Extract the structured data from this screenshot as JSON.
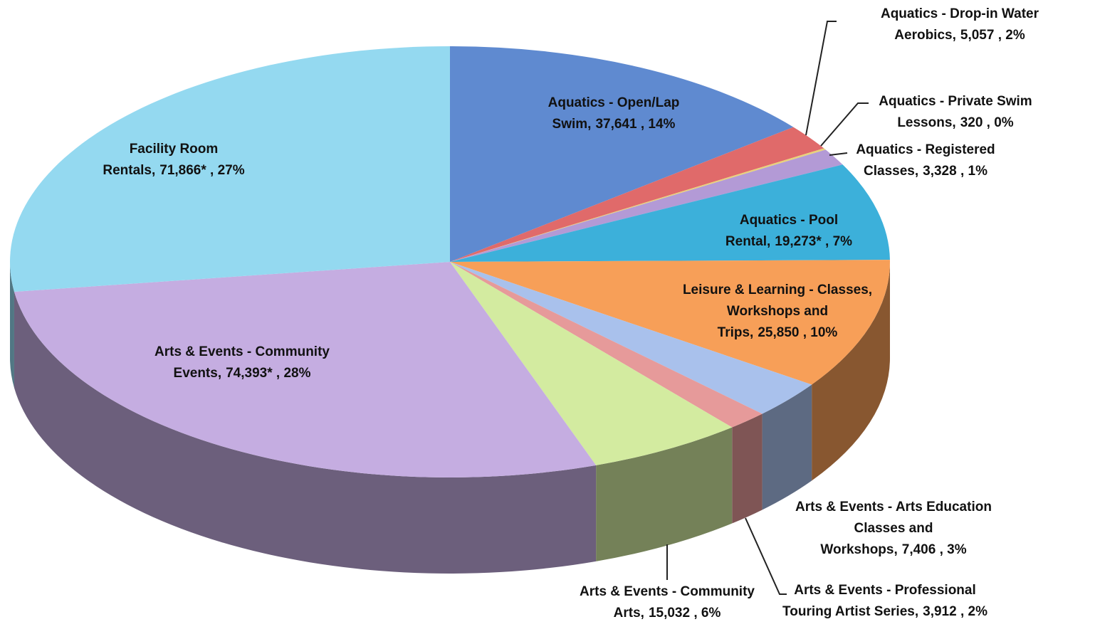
{
  "chart_data": {
    "type": "pie3d",
    "categories": [
      "Aquatics - Open/Lap Swim,",
      "Aquatics - Drop-in Water Aerobics,",
      "Aquatics - Private Swim Lessons,",
      "Aquatics - Registered Classes,",
      "Aquatics - Pool Rental,",
      "Leisure & Learning - Classes, Workshops and Trips,",
      "Arts & Events - Arts Education Classes and Workshops,",
      "Arts & Events - Professional Touring Artist Series,",
      "Arts & Events - Community Arts,",
      "Arts & Events - Community Events,",
      "Facility Room Rentals,"
    ],
    "values": [
      37641,
      5057,
      320,
      3328,
      19273,
      25850,
      7406,
      3912,
      15032,
      74393,
      71866
    ],
    "value_labels": [
      "37,641 , 14%",
      "5,057 , 2%",
      "320 , 0%",
      "3,328 , 1%",
      "19,273* , 7%",
      "25,850 , 10%",
      "7,406 , 3%",
      "3,912 , 2%",
      "15,032 , 6%",
      "74,393* , 28%",
      "71,866* , 27%"
    ],
    "colors": [
      "#5f8ad0",
      "#e06a6a",
      "#e8d27a",
      "#b39ad6",
      "#3cb0da",
      "#f79f58",
      "#a9c1ec",
      "#e69a9a",
      "#d3eba0",
      "#c5ade1",
      "#94d9f0"
    ]
  }
}
